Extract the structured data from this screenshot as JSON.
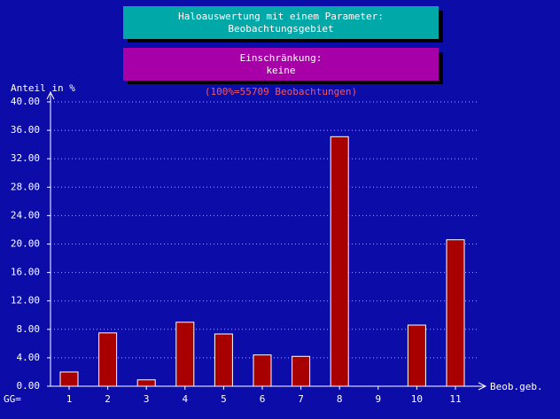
{
  "chart_data": {
    "type": "bar",
    "title": "Haloauswertung mit einem Parameter:",
    "subtitle": "Beobachtungsgebiet",
    "restriction_title": "Einschränkung:",
    "restriction": "keine",
    "note": "(100%=55709 Beobachtungen)",
    "ylabel": "Anteil in %",
    "xlabel": "Beob.geb.",
    "xlabel_prefix": "GG=",
    "categories": [
      "1",
      "2",
      "3",
      "4",
      "5",
      "6",
      "7",
      "8",
      "9",
      "10",
      "11"
    ],
    "values": [
      2.0,
      7.5,
      0.9,
      9.0,
      7.35,
      4.4,
      4.2,
      35.1,
      0,
      8.6,
      20.6
    ],
    "color": "#a80000",
    "ylim": [
      0,
      40
    ],
    "yticks": [
      {
        "value": 0,
        "label": "0.00"
      },
      {
        "value": 4,
        "label": "4.00"
      },
      {
        "value": 8,
        "label": "8.00"
      },
      {
        "value": 12,
        "label": "12.00"
      },
      {
        "value": 16,
        "label": "16.00"
      },
      {
        "value": 20,
        "label": "20.00"
      },
      {
        "value": 24,
        "label": "24.00"
      },
      {
        "value": 28,
        "label": "28.00"
      },
      {
        "value": 32,
        "label": "32.00"
      },
      {
        "value": 36,
        "label": "36.00"
      },
      {
        "value": 40,
        "label": "40.00"
      }
    ],
    "grid": true
  }
}
